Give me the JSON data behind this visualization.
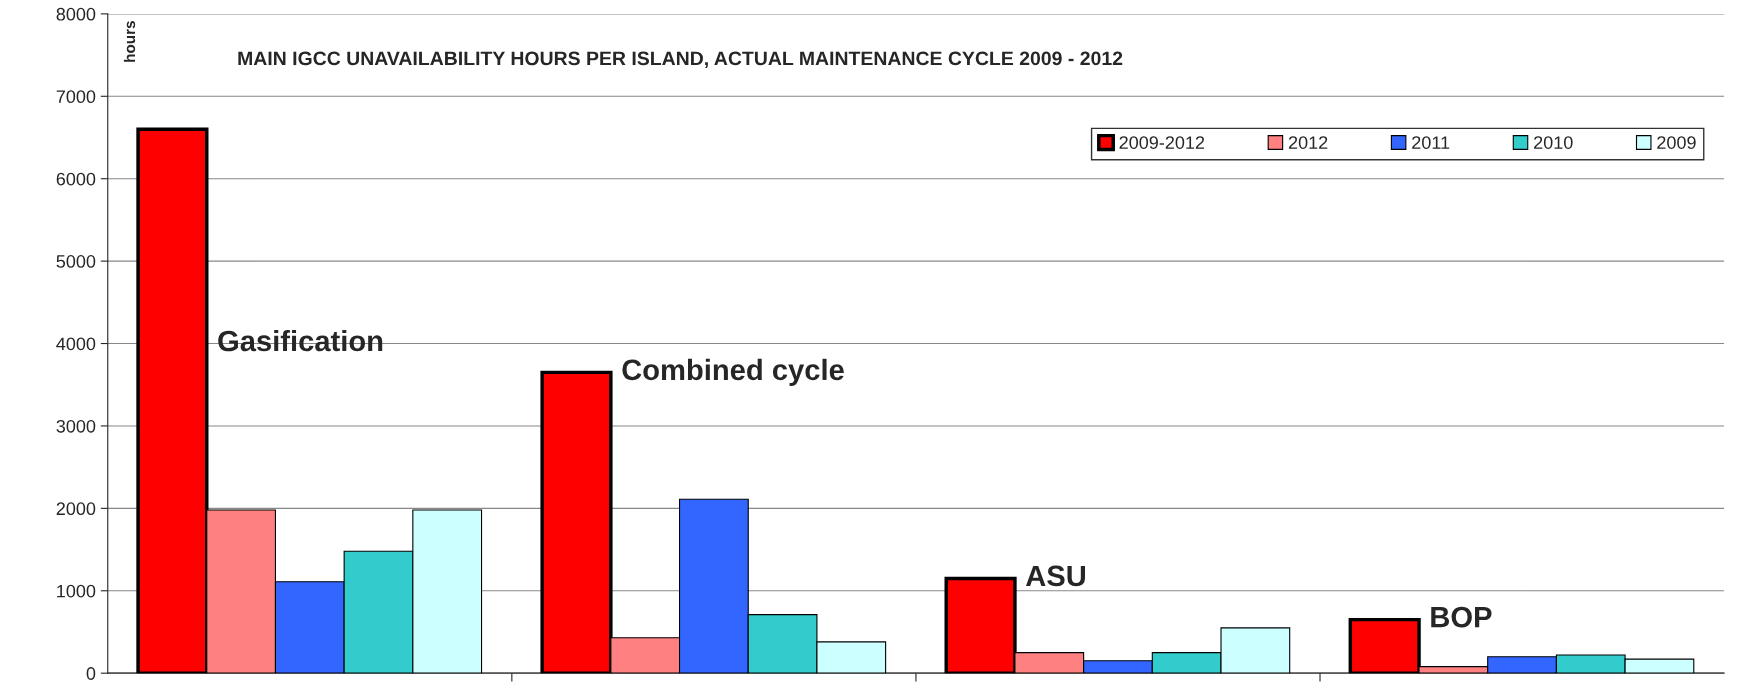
{
  "chart_data": {
    "type": "bar",
    "title": "MAIN IGCC UNAVAILABILITY HOURS PER ISLAND, ACTUAL MAINTENANCE CYCLE 2009 - 2012",
    "ylabel": "hours",
    "categories": [
      "Gasification",
      "Combined cycle",
      "ASU",
      "BOP"
    ],
    "series": [
      {
        "name": "2009-2012",
        "color": "#ff0000",
        "values": [
          6600,
          3650,
          1150,
          650
        ]
      },
      {
        "name": "2012",
        "color": "#ff8080",
        "values": [
          1980,
          430,
          250,
          80
        ]
      },
      {
        "name": "2011",
        "color": "#3366ff",
        "values": [
          1110,
          2110,
          150,
          200
        ]
      },
      {
        "name": "2010",
        "color": "#33cccc",
        "values": [
          1480,
          710,
          250,
          220
        ]
      },
      {
        "name": "2009",
        "color": "#ccffff",
        "values": [
          1980,
          380,
          550,
          170
        ]
      }
    ],
    "ylim": [
      0,
      8000
    ],
    "yticks": [
      0,
      1000,
      2000,
      3000,
      4000,
      5000,
      6000,
      7000,
      8000
    ],
    "grid": "y",
    "legend": "top right",
    "tick_labels": "y"
  }
}
